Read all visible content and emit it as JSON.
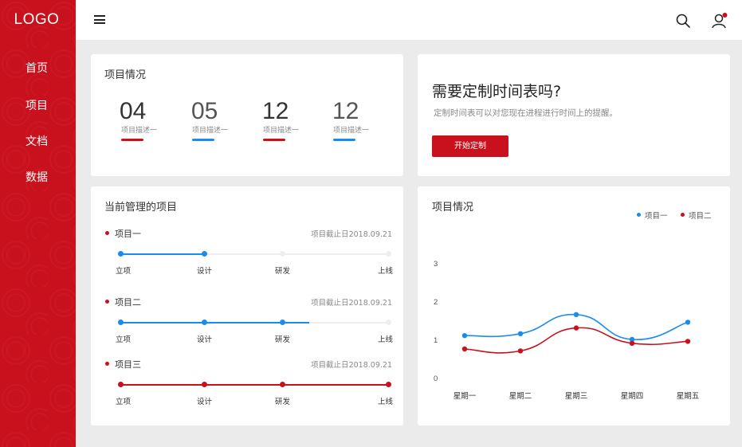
{
  "sidebar": {
    "logo": "LOGO",
    "items": [
      {
        "label": "首页"
      },
      {
        "label": "项目"
      },
      {
        "label": "文档"
      },
      {
        "label": "数据"
      }
    ]
  },
  "topbar": {
    "left_icon": "menu-icon",
    "right_icons": [
      "search-icon",
      "user-icon"
    ],
    "notification_color": "#c8111d"
  },
  "stats_card": {
    "title": "项目情况",
    "stats": [
      {
        "value": "04",
        "desc": "项目描述一",
        "color": "#c8111d"
      },
      {
        "value": "05",
        "desc": "项目描述一",
        "color": "#1a8cf0"
      },
      {
        "value": "12",
        "desc": "项目描述一",
        "color": "#c8111d"
      },
      {
        "value": "12",
        "desc": "项目描述一",
        "color": "#1a8cf0"
      }
    ]
  },
  "promo_card": {
    "title": "需要定制时间表吗?",
    "subtitle": "定制时间表可以对您现在进程进行时间上的提醒。",
    "button_label": "开始定制"
  },
  "projects_card": {
    "title": "当前管理的项目",
    "stages": [
      "立项",
      "设计",
      "研发",
      "上线"
    ],
    "projects": [
      {
        "name": "项目一",
        "deadline": "项目截止日2018.09.21",
        "color": "#1a8cf0",
        "progress": 0.33
      },
      {
        "name": "项目二",
        "deadline": "项目截止日2018.09.21",
        "color": "#1a8cf0",
        "progress": 0.7
      },
      {
        "name": "项目三",
        "deadline": "项目截止日2018.09.21",
        "color": "#c8111d",
        "progress": 1.0
      }
    ]
  },
  "chart_card": {
    "title": "项目情况"
  },
  "chart_data": {
    "type": "line",
    "title": "项目情况",
    "categories": [
      "星期一",
      "星期二",
      "星期三",
      "星期四",
      "星期五"
    ],
    "yticks": [
      "0",
      "1",
      "2",
      "3"
    ],
    "ylim": [
      0,
      3
    ],
    "legend_position": "top-right",
    "series": [
      {
        "name": "项目一",
        "color": "#1a8cf0",
        "values": [
          1.1,
          1.15,
          1.65,
          1.0,
          1.45
        ]
      },
      {
        "name": "项目二",
        "color": "#c8111d",
        "values": [
          0.75,
          0.7,
          1.3,
          0.9,
          0.95
        ]
      }
    ]
  }
}
